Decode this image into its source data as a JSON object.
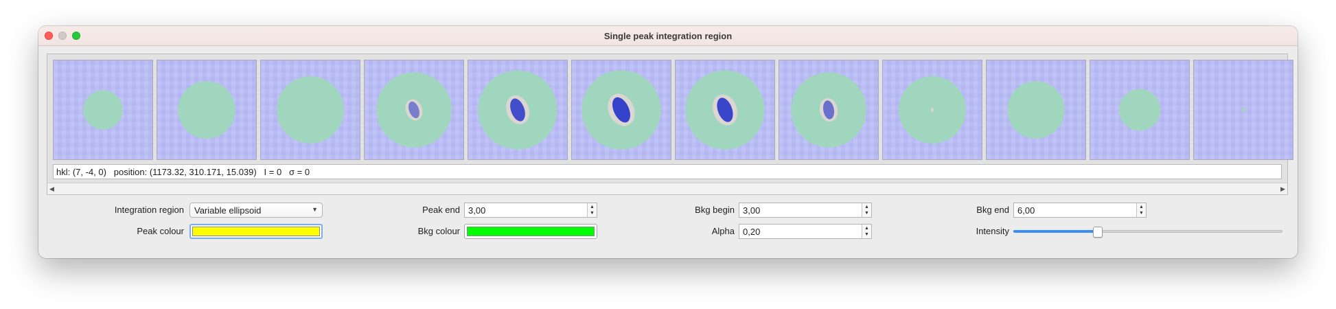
{
  "window": {
    "title": "Single peak integration region"
  },
  "slices": [
    {
      "region_r": 0.2,
      "peak_r": 0,
      "peak_angle": 0,
      "intensity": 0
    },
    {
      "region_r": 0.29,
      "peak_r": 0,
      "peak_angle": 0,
      "intensity": 0
    },
    {
      "region_r": 0.34,
      "peak_r": 0,
      "peak_angle": 0,
      "intensity": 0
    },
    {
      "region_r": 0.38,
      "peak_r": 0.11,
      "peak_angle": -20,
      "intensity": 0.35
    },
    {
      "region_r": 0.4,
      "peak_r": 0.15,
      "peak_angle": -20,
      "intensity": 0.85
    },
    {
      "region_r": 0.4,
      "peak_r": 0.17,
      "peak_angle": -25,
      "intensity": 1.0
    },
    {
      "region_r": 0.4,
      "peak_r": 0.16,
      "peak_angle": -20,
      "intensity": 0.95
    },
    {
      "region_r": 0.38,
      "peak_r": 0.12,
      "peak_angle": -10,
      "intensity": 0.5
    },
    {
      "region_r": 0.34,
      "peak_r": 0.02,
      "peak_angle": 0,
      "intensity": 0.15
    },
    {
      "region_r": 0.29,
      "peak_r": 0,
      "peak_angle": 0,
      "intensity": 0
    },
    {
      "region_r": 0.21,
      "peak_r": 0,
      "peak_angle": 0,
      "intensity": 0
    },
    {
      "region_r": 0.02,
      "peak_r": 0,
      "peak_angle": 0,
      "intensity": 0
    }
  ],
  "colors": {
    "background": "#b9bcf4",
    "bkg_region": "#9fd6bd",
    "peak_core": "#2a39c8",
    "peak_halo": "#dcd6d2"
  },
  "info": {
    "text": "hkl: (7, -4, 0)   position: (1173.32, 310.171, 15.039)   I = 0   σ = 0"
  },
  "controls": {
    "integration_region": {
      "label": "Integration region",
      "value": "Variable ellipsoid"
    },
    "peak_end": {
      "label": "Peak end",
      "value": "3,00"
    },
    "bkg_begin": {
      "label": "Bkg begin",
      "value": "3,00"
    },
    "bkg_end": {
      "label": "Bkg end",
      "value": "6,00"
    },
    "peak_colour": {
      "label": "Peak colour",
      "color": "#ffff00"
    },
    "bkg_colour": {
      "label": "Bkg colour",
      "color": "#00ff00"
    },
    "alpha": {
      "label": "Alpha",
      "value": "0,20"
    },
    "intensity": {
      "label": "Intensity",
      "fraction": 0.31
    }
  }
}
